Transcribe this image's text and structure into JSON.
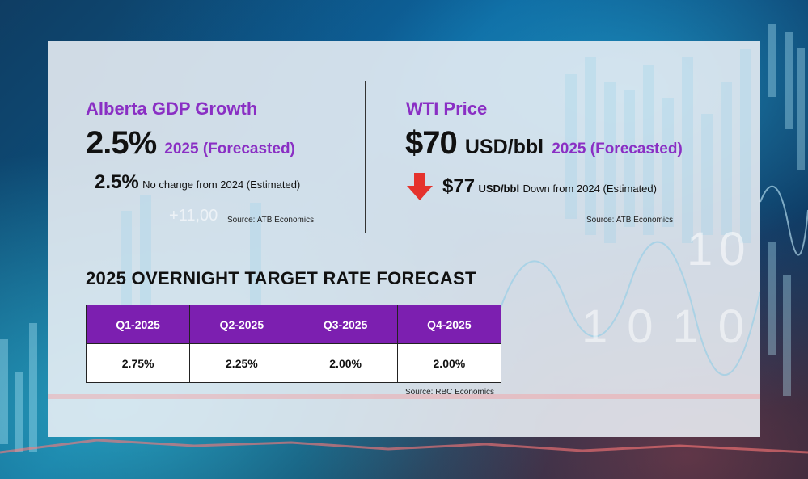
{
  "gdp": {
    "title": "Alberta GDP Growth",
    "value": "2.5%",
    "label": "2025 (Forecasted)",
    "prev_value": "2.5%",
    "prev_text": "No change from 2024 (Estimated)",
    "source": "Source: ATB Economics"
  },
  "wti": {
    "title": "WTI Price",
    "value": "$70",
    "unit": "USD/bbl",
    "label": "2025 (Forecasted)",
    "prev_value": "$77",
    "prev_unit": "USD/bbl",
    "prev_text": "Down from 2024 (Estimated)",
    "source": "Source: ATB Economics",
    "trend_icon": "down-arrow-icon",
    "trend_color": "#e5322d"
  },
  "rates": {
    "title": "2025 OVERNIGHT TARGET RATE FORECAST",
    "headers": [
      "Q1-2025",
      "Q2-2025",
      "Q3-2025",
      "Q4-2025"
    ],
    "values": [
      "2.75%",
      "2.25%",
      "2.00%",
      "2.00%"
    ],
    "source": "Source: RBC Economics",
    "header_color": "#7c1fb0"
  },
  "background": {
    "ticker_text": "+11,00",
    "digits": [
      "1",
      "0",
      "1",
      "0",
      "1",
      "0"
    ]
  }
}
